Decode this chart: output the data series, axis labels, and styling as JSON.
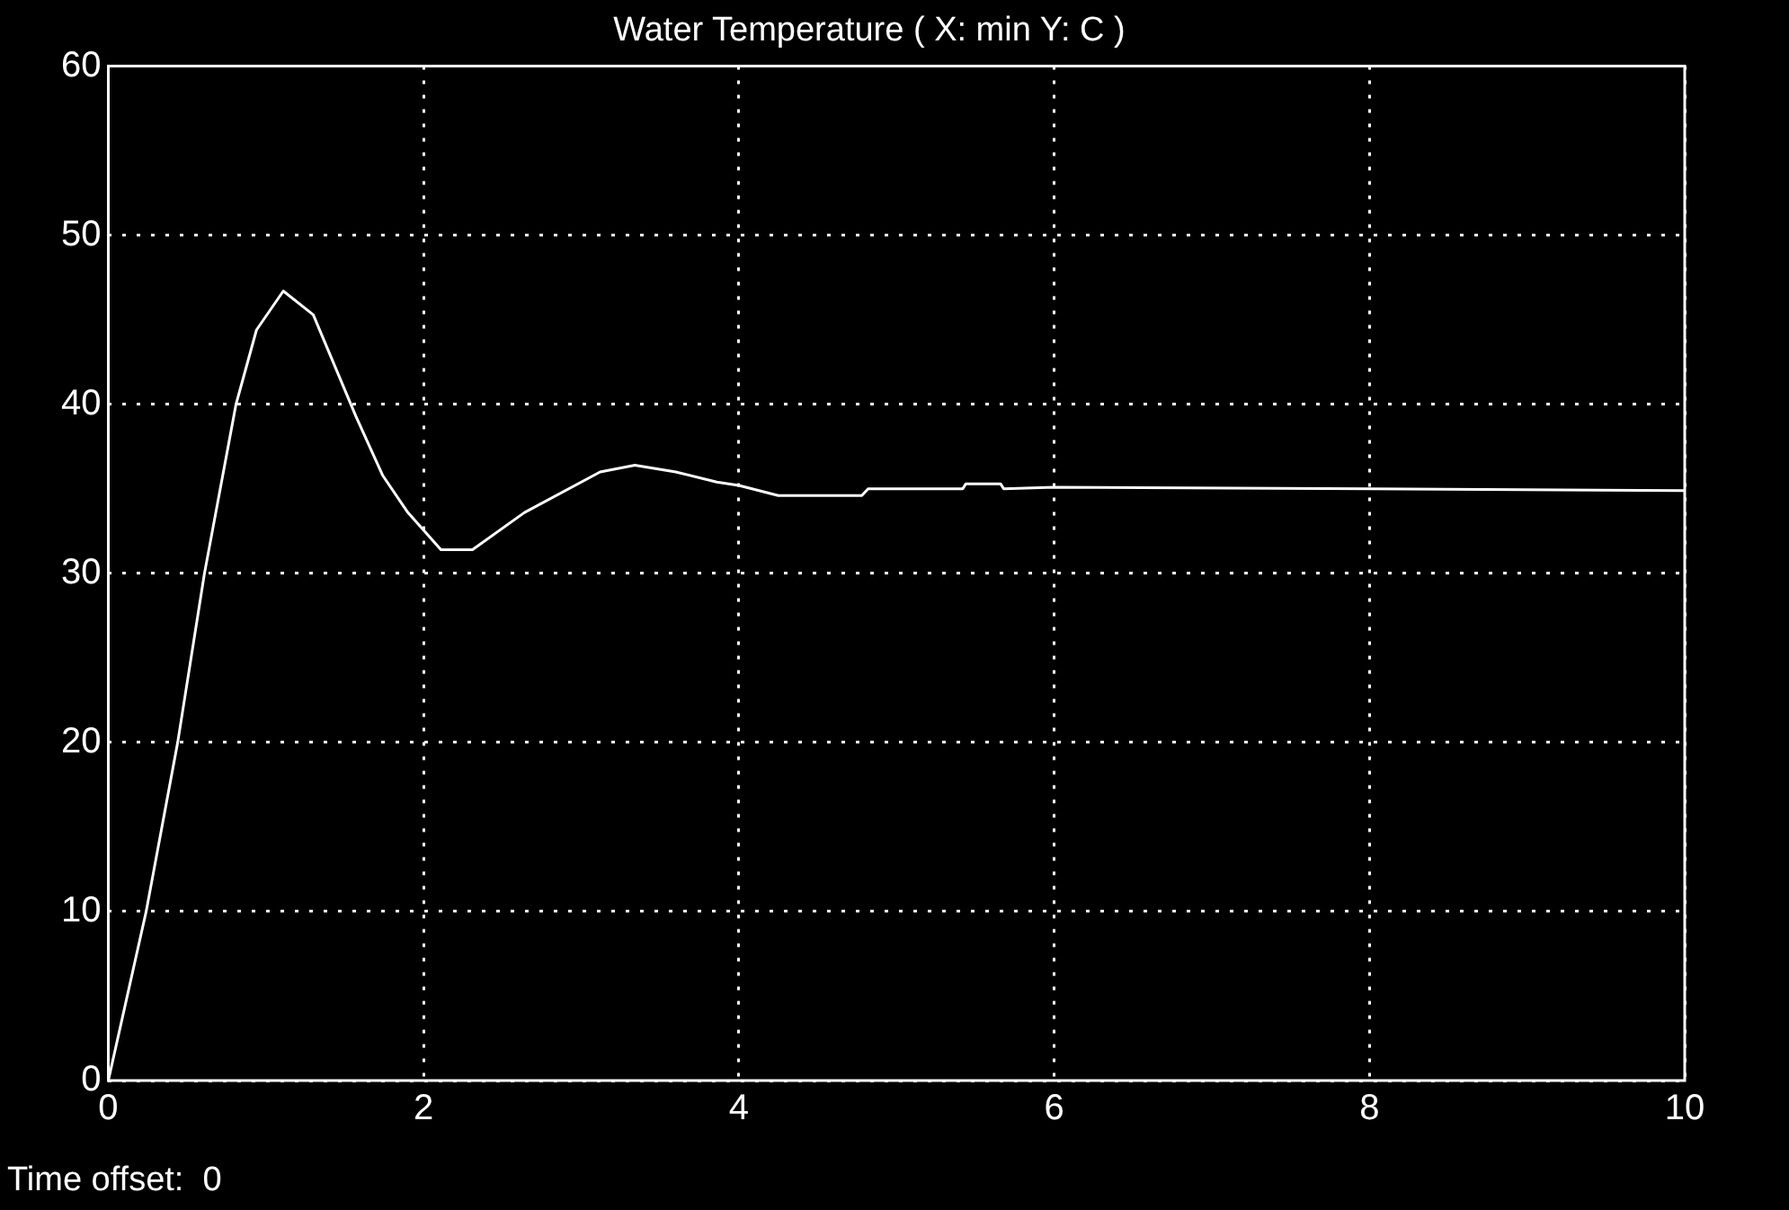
{
  "chart_data": {
    "type": "line",
    "title": "Water Temperature ( X: min Y: C )",
    "x": [
      0,
      0.24,
      0.44,
      0.61,
      0.81,
      0.94,
      1.11,
      1.3,
      1.57,
      1.74,
      1.9,
      2.11,
      2.31,
      2.64,
      3.12,
      3.34,
      3.6,
      3.86,
      4,
      4.25,
      4.78,
      4.82,
      5.42,
      5.44,
      5.66,
      5.68,
      6,
      10
    ],
    "series": [
      {
        "color": "#ffffff",
        "values": [
          0,
          10,
          20,
          30,
          40,
          44.4,
          46.7,
          45.3,
          39.3,
          35.8,
          33.6,
          31.4,
          31.4,
          33.6,
          36,
          36.4,
          36,
          35.4,
          35.2,
          34.6,
          34.6,
          35,
          35,
          35.3,
          35.3,
          35,
          35.1,
          34.9
        ]
      }
    ],
    "xlim": [
      0,
      10
    ],
    "xticks": [
      0,
      2,
      4,
      6,
      8,
      10
    ],
    "ylim": [
      0,
      60
    ],
    "yticks": [
      0,
      10,
      20,
      30,
      40,
      50,
      60
    ],
    "grid": true,
    "legend": false,
    "marker": "none",
    "line_style": "solid",
    "annotations": [
      "Time offset:  0"
    ]
  }
}
